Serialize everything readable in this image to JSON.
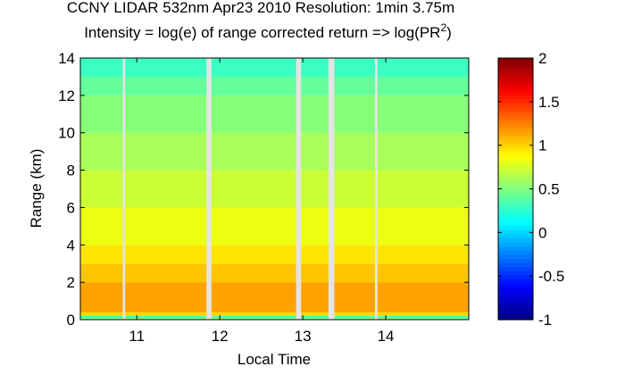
{
  "chart_data": {
    "type": "heatmap",
    "title": "CCNY LIDAR 532nm Apr23 2010 Resolution: 1min 3.75m",
    "subtitle": [
      "Intensity = log(e) of range corrected return => log(PR",
      "2",
      ")"
    ],
    "x_label": "Local Time",
    "y_label": "Range (km)",
    "xlim": [
      10.32,
      15.0
    ],
    "xticks": [
      11,
      12,
      13,
      14
    ],
    "ylim": [
      0,
      14
    ],
    "yticks": [
      0,
      2,
      4,
      6,
      8,
      10,
      12,
      14
    ],
    "colormap": "jet",
    "clim": [
      -1,
      2
    ],
    "cticks": [
      -1,
      -0.5,
      0,
      0.5,
      1,
      1.5,
      2
    ],
    "y_edges": [
      0,
      0.1,
      0.2,
      0.4,
      2,
      3,
      4,
      6,
      8,
      10,
      12,
      13,
      14
    ],
    "values": [
      0.5,
      0.3,
      1.0,
      1.15,
      1.05,
      0.95,
      0.82,
      0.72,
      0.62,
      0.52,
      0.42,
      0.3
    ],
    "gaps": [
      [
        10.83,
        10.86
      ],
      [
        11.84,
        11.9
      ],
      [
        12.92,
        12.98
      ],
      [
        13.31,
        13.38
      ],
      [
        13.87,
        13.9
      ]
    ],
    "gap_color": "#e4e4e4"
  }
}
